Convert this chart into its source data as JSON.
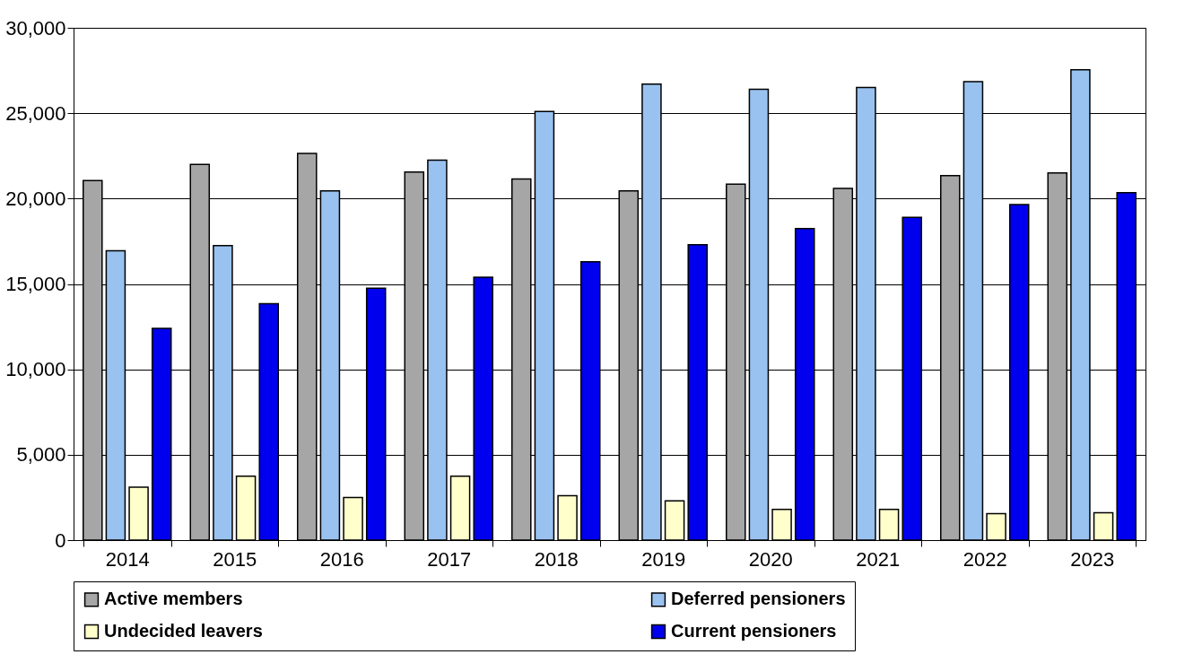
{
  "chart_data": {
    "type": "bar",
    "categories": [
      "2014",
      "2015",
      "2016",
      "2017",
      "2018",
      "2019",
      "2020",
      "2021",
      "2022",
      "2023"
    ],
    "series": [
      {
        "name": "Active members",
        "color": "#a6a6a6",
        "values": [
          21050,
          22000,
          22650,
          21550,
          21150,
          20450,
          20850,
          20600,
          21350,
          21500
        ]
      },
      {
        "name": "Deferred pensioners",
        "color": "#99c2f0",
        "values": [
          16950,
          17250,
          20450,
          22250,
          25100,
          26700,
          26400,
          26500,
          26850,
          27550
        ]
      },
      {
        "name": "Undecided leavers",
        "color": "#ffffcc",
        "values": [
          3100,
          3750,
          2500,
          3750,
          2600,
          2300,
          1800,
          1800,
          1550,
          1600
        ]
      },
      {
        "name": "Current pensioners",
        "color": "#0000ee",
        "values": [
          12400,
          13850,
          14750,
          15400,
          16300,
          17300,
          18250,
          18900,
          19650,
          20350
        ]
      }
    ],
    "ylim": [
      0,
      30000
    ],
    "yticks": [
      0,
      {
        "value": 5000,
        "label": "5,000"
      },
      {
        "value": 10000,
        "label": "10,000"
      },
      {
        "value": 15000,
        "label": "15,000"
      },
      {
        "value": 20000,
        "label": "20,000"
      },
      {
        "value": 25000,
        "label": "25,000"
      },
      {
        "value": 30000,
        "label": "30,000"
      }
    ],
    "grid": "y",
    "legend": "bottom"
  }
}
